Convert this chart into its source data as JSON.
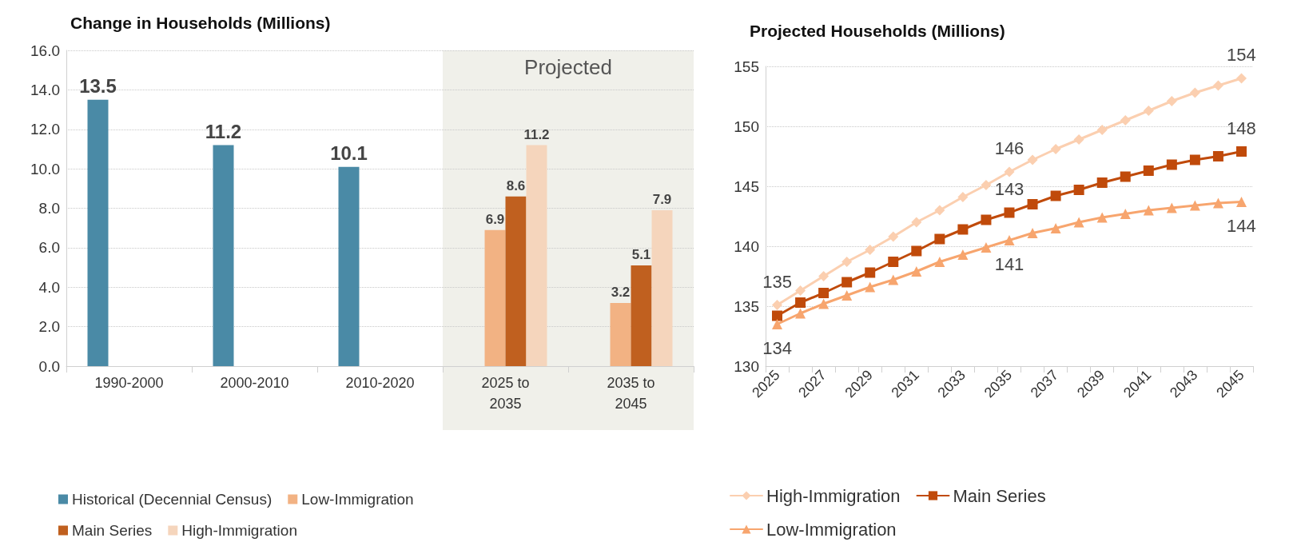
{
  "chart_data": [
    {
      "type": "bar",
      "title": "Change in Households (Millions)",
      "categories": [
        "1990-2000",
        "2000-2010",
        "2010-2020",
        "2025 to\n2035",
        "2035 to\n2045"
      ],
      "series": [
        {
          "name": "Historical (Decennial Census)",
          "color": "#4a8aa6",
          "values": [
            13.5,
            11.2,
            10.1,
            null,
            null
          ]
        },
        {
          "name": "Low-Immigration",
          "color": "#f2b283",
          "values": [
            null,
            null,
            null,
            6.9,
            3.2
          ]
        },
        {
          "name": "Main Series",
          "color": "#c0601f",
          "values": [
            null,
            null,
            null,
            8.6,
            5.1
          ]
        },
        {
          "name": "High-Immigration",
          "color": "#f5d5bc",
          "values": [
            null,
            null,
            null,
            11.2,
            7.9
          ]
        }
      ],
      "ylim": [
        0,
        16
      ],
      "yticks": [
        {
          "value": 0,
          "label": "0.0"
        },
        {
          "value": 2,
          "label": "2.0"
        },
        {
          "value": 4,
          "label": "4.0"
        },
        {
          "value": 6,
          "label": "6.0"
        },
        {
          "value": 8,
          "label": "8.0"
        },
        {
          "value": 10,
          "label": "10.0"
        },
        {
          "value": 12,
          "label": "12.0"
        },
        {
          "value": 14,
          "label": "14.0"
        },
        {
          "value": 16,
          "label": "16.0"
        }
      ],
      "bands": [
        {
          "axis": "x",
          "from": "2025 to\n2035",
          "to": "2035 to\n2045",
          "label": "Projected",
          "color": "#f0f0ea"
        }
      ],
      "data_labels": true,
      "grid": "y",
      "legend": "bottom"
    },
    {
      "type": "line",
      "title": "Projected Households (Millions)",
      "categories": [
        "2025",
        null,
        "2027",
        null,
        "2029",
        null,
        "2031",
        null,
        "2033",
        null,
        "2035",
        null,
        "2037",
        null,
        "2039",
        null,
        "2041",
        null,
        "2043",
        null,
        "2045"
      ],
      "series": [
        {
          "name": "High-Immigration",
          "color": "#fbcfb0",
          "marker": "diamond",
          "values": [
            135.1,
            136.3,
            137.5,
            138.7,
            139.7,
            140.8,
            142.0,
            143.0,
            144.1,
            145.1,
            146.2,
            147.2,
            148.1,
            148.9,
            149.7,
            150.5,
            151.3,
            152.1,
            152.8,
            153.4,
            154.0
          ],
          "value_labels": [
            "135",
            null,
            null,
            null,
            null,
            null,
            null,
            null,
            null,
            null,
            "146",
            null,
            null,
            null,
            null,
            null,
            null,
            null,
            null,
            null,
            "154"
          ]
        },
        {
          "name": "Main Series",
          "color": "#c04a0a",
          "marker": "square",
          "values": [
            134.2,
            135.3,
            136.1,
            137.0,
            137.8,
            138.7,
            139.6,
            140.6,
            141.4,
            142.2,
            142.8,
            143.5,
            144.2,
            144.7,
            145.3,
            145.8,
            146.3,
            146.8,
            147.2,
            147.5,
            147.9
          ],
          "value_labels": [
            null,
            null,
            null,
            null,
            null,
            null,
            null,
            null,
            null,
            null,
            "143",
            null,
            null,
            null,
            null,
            null,
            null,
            null,
            null,
            null,
            "148"
          ]
        },
        {
          "name": "Low-Immigration",
          "color": "#f7a56e",
          "marker": "triangle",
          "values": [
            133.5,
            134.4,
            135.2,
            135.9,
            136.6,
            137.2,
            137.9,
            138.7,
            139.3,
            139.9,
            140.5,
            141.1,
            141.5,
            142.0,
            142.4,
            142.7,
            143.0,
            143.2,
            143.4,
            143.6,
            143.7
          ],
          "value_labels": [
            "134",
            null,
            null,
            null,
            null,
            null,
            null,
            null,
            null,
            null,
            "141",
            null,
            null,
            null,
            null,
            null,
            null,
            null,
            null,
            null,
            "144"
          ]
        }
      ],
      "ylim": [
        130,
        155
      ],
      "yticks": [
        130,
        135,
        140,
        145,
        150,
        155
      ],
      "grid": "y",
      "legend": "bottom",
      "line_style": "solid"
    }
  ]
}
